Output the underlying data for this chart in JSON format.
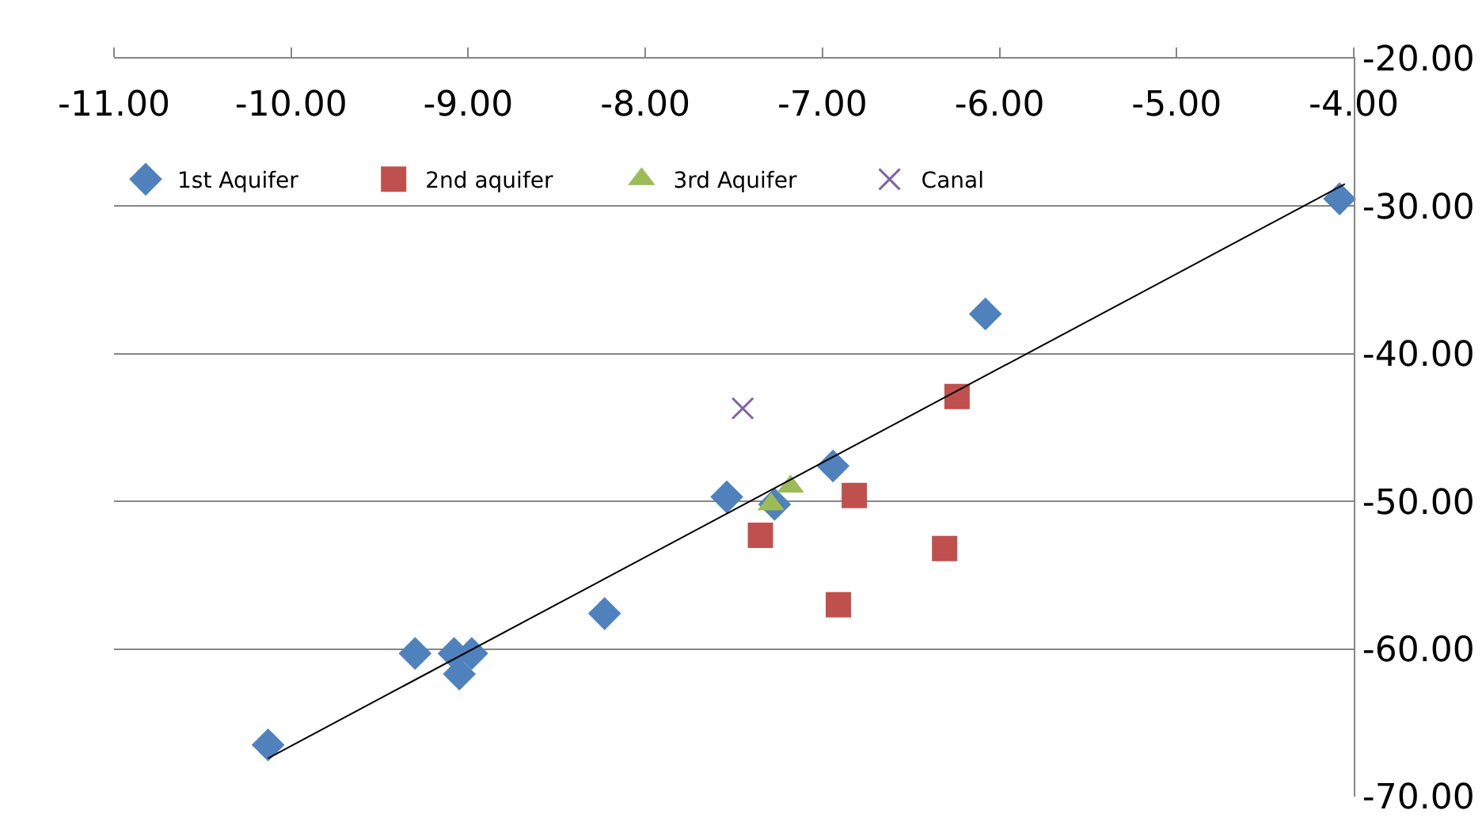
{
  "chart_data": {
    "type": "scatter",
    "legend": "top left",
    "grid": "y",
    "xlim": [
      -11,
      -4
    ],
    "ylim": [
      -70,
      -20
    ],
    "xticks": [
      {
        "value": -11,
        "label": "-11.00"
      },
      {
        "value": -10,
        "label": "-10.00"
      },
      {
        "value": -9,
        "label": "-9.00"
      },
      {
        "value": -8,
        "label": "-8.00"
      },
      {
        "value": -7,
        "label": "-7.00"
      },
      {
        "value": -6,
        "label": "-6.00"
      },
      {
        "value": -5,
        "label": "-5.00"
      },
      {
        "value": -4,
        "label": "-4.00"
      }
    ],
    "yticks": [
      {
        "value": -20,
        "label": "-20.00"
      },
      {
        "value": -30,
        "label": "-30.00"
      },
      {
        "value": -40,
        "label": "-40.00"
      },
      {
        "value": -50,
        "label": "-50.00"
      },
      {
        "value": -60,
        "label": "-60.00"
      },
      {
        "value": -70,
        "label": "-70.00"
      }
    ],
    "series": [
      {
        "name": "1st Aquifer",
        "color": "#4f81bd",
        "marker": "diamond",
        "x": [
          -10.13,
          -9.3,
          -9.08,
          -9.05,
          -8.98,
          -8.23,
          -7.54,
          -7.27,
          -6.94,
          -6.08,
          -4.08
        ],
        "values": [
          -66.5,
          -60.3,
          -60.3,
          -61.7,
          -60.3,
          -57.6,
          -49.7,
          -50.2,
          -47.6,
          -37.3,
          -29.5
        ]
      },
      {
        "name": "2nd aquifer",
        "color": "#c0504d",
        "marker": "square",
        "x": [
          -7.35,
          -6.91,
          -6.82,
          -6.31,
          -6.24
        ],
        "values": [
          -52.3,
          -57.0,
          -49.6,
          -53.2,
          -42.9
        ]
      },
      {
        "name": "3rd Aquifer",
        "color": "#9bbb59",
        "marker": "triangle",
        "x": [
          -7.29,
          -7.18
        ],
        "values": [
          -50.2,
          -49.0
        ]
      },
      {
        "name": "Canal",
        "color": "#8064a2",
        "marker": "cross",
        "x": [
          -7.45
        ],
        "values": [
          -43.7
        ]
      },
      {
        "type": "line",
        "color": "#000000",
        "marker": "none",
        "line_style": "solid",
        "x": [
          -10.13,
          -4.05
        ],
        "values": [
          -67.4,
          -28.5
        ]
      }
    ]
  }
}
